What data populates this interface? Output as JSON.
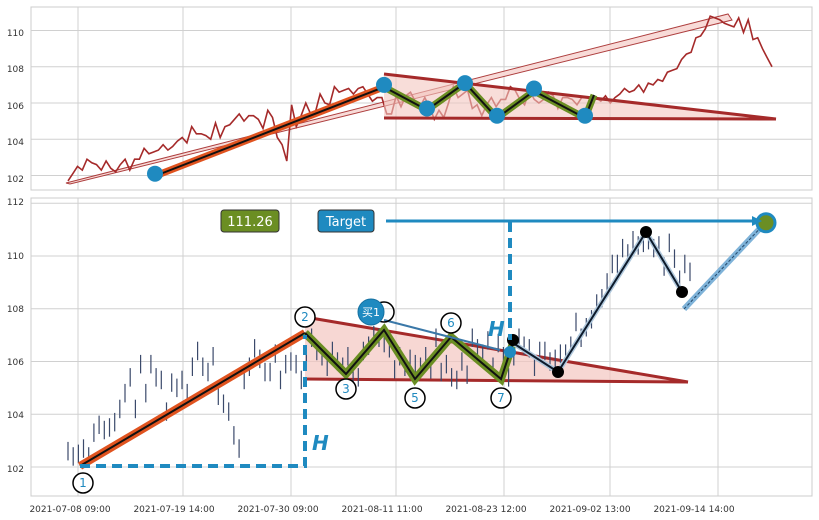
{
  "chart_data": [
    {
      "type": "line",
      "panel": "top",
      "ylim": [
        101.2,
        111.3
      ],
      "yticks": [
        102,
        104,
        106,
        108,
        110
      ],
      "grid": true,
      "series": [
        {
          "values": [
            101.7,
            102.1,
            102.5,
            102.3,
            102.9,
            102.7,
            102.6,
            102.3,
            102.8,
            102.4,
            102.2,
            102.6,
            102.9,
            102.3,
            102.9,
            102.9,
            103.5,
            103.2,
            103.3,
            103.4,
            103.7,
            103.4,
            103.6,
            103.9,
            104.1,
            103.8,
            104.7,
            104.3,
            104.3,
            104.2,
            104.0,
            104.9,
            104.1,
            104.7,
            104.8,
            105.1,
            105.4,
            105.0,
            105.3,
            105.3,
            105.1,
            104.6,
            105.6,
            105.2,
            104.1,
            103.7,
            102.8,
            105.9,
            104.7,
            105.3,
            106.0,
            105.4,
            105.5,
            106.5,
            106.0,
            105.9,
            106.9,
            106.6,
            106.7,
            106.8,
            106.5,
            106.8,
            106.9,
            106.5,
            106.1,
            106.3,
            106.3,
            105.4,
            105.4,
            106.4,
            105.8,
            106.4,
            106.6,
            106.1,
            105.8,
            106.3,
            105.8,
            105.1,
            105.6,
            105.2,
            106.0,
            106.9,
            106.3,
            106.5,
            106.7,
            105.7,
            105.9,
            105.3,
            105.9,
            106.3,
            105.8,
            106.2,
            106.2,
            106.9,
            106.7,
            106.2,
            105.9,
            106.7,
            106.2,
            106.0,
            106.2,
            106.6,
            106.4,
            105.7,
            106.3,
            106.3,
            106.2,
            105.9,
            106.3,
            106.3,
            106.3,
            106.3,
            106.1,
            106.4,
            106.0,
            106.3,
            106.5,
            106.8,
            106.6,
            106.7,
            107.0,
            106.6,
            107.1,
            107.0,
            107.3,
            107.2,
            107.7,
            107.8,
            107.9,
            108.4,
            108.7,
            108.8,
            109.6,
            109.7,
            110.1,
            110.8,
            110.7,
            110.6,
            110.4,
            110.3,
            110.2,
            110.7,
            109.9,
            110.6,
            109.5,
            109.6,
            109.0,
            108.5,
            108.0
          ]
        }
      ],
      "markers": [
        102.1,
        107.0,
        105.7,
        107.1,
        105.3,
        106.8,
        105.3
      ]
    },
    {
      "type": "line",
      "panel": "bottom",
      "ylim": [
        100.9,
        112.2
      ],
      "yticks": [
        102,
        104,
        106,
        108,
        110,
        112
      ],
      "xticks": [
        "2021-07-08 09:00",
        "2021-07-19 14:00",
        "2021-07-30 09:00",
        "2021-08-11 11:00",
        "2021-08-23 12:00",
        "2021-09-02 13:00",
        "2021-09-14 14:00"
      ],
      "grid": true,
      "series": [
        {
          "values": [
            102.6,
            102.4,
            102.5,
            102.7,
            102.4,
            103.3,
            103.6,
            103.4,
            103.5,
            103.7,
            104.2,
            104.8,
            105.4,
            104.2,
            105.9,
            104.8,
            105.9,
            105.4,
            105.3,
            104.1,
            105.2,
            105.0,
            105.3,
            104.8,
            105.8,
            106.4,
            105.8,
            105.6,
            106.2,
            104.7,
            104.4,
            104.1,
            103.2,
            102.7,
            105.3,
            105.8,
            106.5,
            106.1,
            105.6,
            105.6,
            106.3,
            105.3,
            105.9,
            106.0,
            105.9,
            105.3,
            106.2,
            106.9,
            106.4,
            106.2,
            105.8,
            106.4,
            106.0,
            105.8,
            106.2,
            105.5,
            105.4,
            106.4,
            106.6,
            107.0,
            106.9,
            106.7,
            106.5,
            105.7,
            106.2,
            105.8,
            106.1,
            105.9,
            105.8,
            106.2,
            105.7,
            106.9,
            105.6,
            105.9,
            105.4,
            105.3,
            106.0,
            105.5,
            106.9,
            106.5,
            106.3,
            106.8,
            105.8,
            106.7,
            106.2,
            105.4,
            106.2,
            106.9,
            106.6,
            106.5,
            105.8,
            106.4,
            106.4,
            106.0,
            106.1,
            106.3,
            106.3,
            106.6,
            107.5,
            106.9,
            107.3,
            107.6,
            108.2,
            108.4,
            109.0,
            109.7,
            109.7,
            110.3,
            110.1,
            110.6,
            110.4,
            110.5,
            110.6,
            110.3,
            110.4,
            109.6,
            110.5,
            109.9,
            109.1,
            109.7,
            109.4
          ]
        }
      ],
      "wave_labels": [
        "1",
        "2",
        "3",
        "4",
        "5",
        "6",
        "7"
      ],
      "buy_label": "买1",
      "h_label": "H",
      "price_box": "111.26",
      "target_label": "Target",
      "target_price": 111.26
    }
  ],
  "colors": {
    "price_line_top": "#a52a2a",
    "price_line_bottom": "#3b4a6b",
    "trend_orange": "#e0531f",
    "wave_green": "#6b8e23",
    "triangle_fill": "#f4c6c0",
    "triangle_edge": "#a52a2a",
    "accent_blue": "#1f8ac0",
    "grid": "#d0d0d0",
    "marker_black": "#000000"
  }
}
